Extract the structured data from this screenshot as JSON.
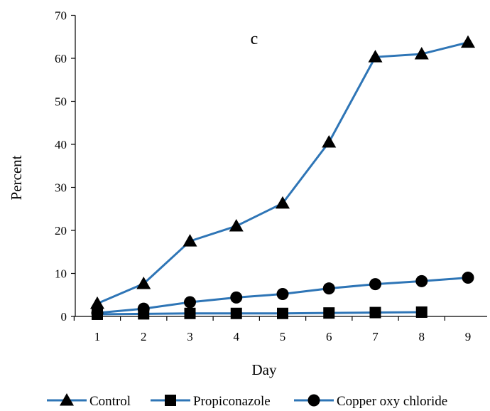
{
  "chart_data": {
    "type": "line",
    "title": "",
    "annotation": "c",
    "xlabel": "Day",
    "ylabel": "Percent",
    "x": [
      1,
      2,
      3,
      4,
      5,
      6,
      7,
      8,
      9
    ],
    "x_tick_labels": [
      "1",
      "2",
      "3",
      "4",
      "5",
      "6",
      "7",
      "8",
      "9"
    ],
    "ylim": [
      0,
      70
    ],
    "y_ticks": [
      0,
      10,
      20,
      30,
      40,
      50,
      60,
      70
    ],
    "y_tick_labels": [
      "0",
      "10",
      "20",
      "30",
      "40",
      "50",
      "60",
      "70"
    ],
    "grid": false,
    "legend_position": "bottom",
    "line_color": "#2E75B6",
    "marker_color": "#000000",
    "series": [
      {
        "name": "Control",
        "marker": "triangle",
        "values": [
          3,
          7.6,
          17.5,
          21,
          26.3,
          40.5,
          60.3,
          61,
          63.7
        ]
      },
      {
        "name": "Propiconazole",
        "marker": "square",
        "values": [
          0.5,
          0.6,
          0.7,
          0.7,
          0.7,
          0.8,
          0.9,
          1.0,
          null
        ]
      },
      {
        "name": "Copper oxy chloride",
        "marker": "circle",
        "values": [
          0.8,
          1.8,
          3.3,
          4.4,
          5.2,
          6.5,
          7.5,
          8.2,
          9
        ]
      }
    ]
  }
}
